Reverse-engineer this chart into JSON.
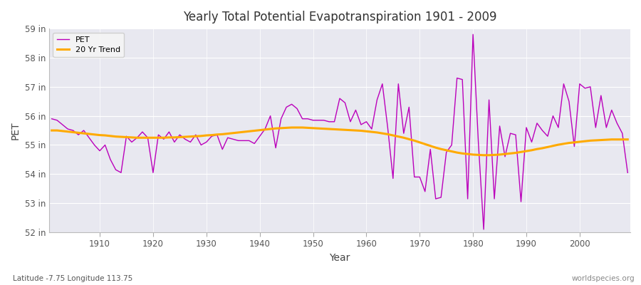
{
  "title": "Yearly Total Potential Evapotranspiration 1901 - 2009",
  "ylabel": "PET",
  "xlabel": "Year",
  "pet_color": "#bb00bb",
  "trend_color": "#ffaa00",
  "background_color": "#e8e8f0",
  "grid_color": "#ffffff",
  "fig_facecolor": "#ffffff",
  "ylim": [
    52,
    59
  ],
  "yticks": [
    52,
    53,
    54,
    55,
    56,
    57,
    58,
    59
  ],
  "ytick_labels": [
    "52 in",
    "53 in",
    "54 in",
    "55 in",
    "56 in",
    "57 in",
    "58 in",
    "59 in"
  ],
  "legend_labels": [
    "PET",
    "20 Yr Trend"
  ],
  "footer_left": "Latitude -7.75 Longitude 113.75",
  "footer_right": "worldspecies.org",
  "years": [
    1901,
    1902,
    1903,
    1904,
    1905,
    1906,
    1907,
    1908,
    1909,
    1910,
    1911,
    1912,
    1913,
    1914,
    1915,
    1916,
    1917,
    1918,
    1919,
    1920,
    1921,
    1922,
    1923,
    1924,
    1925,
    1926,
    1927,
    1928,
    1929,
    1930,
    1931,
    1932,
    1933,
    1934,
    1935,
    1936,
    1937,
    1938,
    1939,
    1940,
    1941,
    1942,
    1943,
    1944,
    1945,
    1946,
    1947,
    1948,
    1949,
    1950,
    1951,
    1952,
    1953,
    1954,
    1955,
    1956,
    1957,
    1958,
    1959,
    1960,
    1961,
    1962,
    1963,
    1964,
    1965,
    1966,
    1967,
    1968,
    1969,
    1970,
    1971,
    1972,
    1973,
    1974,
    1975,
    1976,
    1977,
    1978,
    1979,
    1980,
    1981,
    1982,
    1983,
    1984,
    1985,
    1986,
    1987,
    1988,
    1989,
    1990,
    1991,
    1992,
    1993,
    1994,
    1995,
    1996,
    1997,
    1998,
    1999,
    2000,
    2001,
    2002,
    2003,
    2004,
    2005,
    2006,
    2007,
    2008,
    2009
  ],
  "pet_values": [
    55.9,
    55.85,
    55.7,
    55.55,
    55.5,
    55.35,
    55.5,
    55.25,
    55.0,
    54.8,
    55.0,
    54.5,
    54.15,
    54.05,
    55.3,
    55.1,
    55.25,
    55.45,
    55.25,
    54.05,
    55.35,
    55.2,
    55.45,
    55.1,
    55.35,
    55.2,
    55.1,
    55.35,
    55.0,
    55.1,
    55.3,
    55.35,
    54.85,
    55.25,
    55.2,
    55.15,
    55.15,
    55.15,
    55.05,
    55.3,
    55.55,
    56.0,
    54.9,
    55.9,
    56.3,
    56.4,
    56.25,
    55.9,
    55.9,
    55.85,
    55.85,
    55.85,
    55.8,
    55.8,
    56.6,
    56.45,
    55.8,
    56.2,
    55.7,
    55.8,
    55.55,
    56.55,
    57.1,
    55.6,
    53.85,
    57.1,
    55.4,
    56.3,
    53.9,
    53.9,
    53.4,
    54.85,
    53.15,
    53.2,
    54.75,
    55.0,
    57.3,
    57.25,
    53.15,
    58.8,
    55.1,
    52.1,
    56.55,
    53.15,
    55.65,
    54.6,
    55.4,
    55.35,
    53.05,
    55.6,
    55.1,
    55.75,
    55.5,
    55.3,
    56.0,
    55.6,
    57.1,
    56.5,
    54.95,
    57.1,
    56.95,
    57.0,
    55.6,
    56.7,
    55.6,
    56.2,
    55.75,
    55.4,
    54.05
  ],
  "trend_values": [
    55.5,
    55.5,
    55.48,
    55.46,
    55.44,
    55.42,
    55.4,
    55.38,
    55.36,
    55.34,
    55.33,
    55.31,
    55.29,
    55.28,
    55.27,
    55.26,
    55.25,
    55.25,
    55.25,
    55.25,
    55.25,
    55.25,
    55.26,
    55.26,
    55.27,
    55.28,
    55.29,
    55.3,
    55.31,
    55.33,
    55.34,
    55.36,
    55.37,
    55.39,
    55.41,
    55.43,
    55.45,
    55.47,
    55.49,
    55.51,
    55.53,
    55.55,
    55.57,
    55.58,
    55.59,
    55.6,
    55.6,
    55.6,
    55.59,
    55.58,
    55.57,
    55.56,
    55.55,
    55.54,
    55.53,
    55.52,
    55.51,
    55.5,
    55.49,
    55.47,
    55.45,
    55.43,
    55.4,
    55.37,
    55.33,
    55.29,
    55.25,
    55.2,
    55.15,
    55.09,
    55.03,
    54.97,
    54.91,
    54.86,
    54.82,
    54.78,
    54.74,
    54.71,
    54.69,
    54.67,
    54.66,
    54.65,
    54.65,
    54.66,
    54.67,
    54.69,
    54.71,
    54.73,
    54.76,
    54.79,
    54.82,
    54.86,
    54.89,
    54.93,
    54.97,
    55.01,
    55.04,
    55.07,
    55.09,
    55.11,
    55.13,
    55.15,
    55.16,
    55.17,
    55.18,
    55.19,
    55.19,
    55.19,
    55.19
  ]
}
